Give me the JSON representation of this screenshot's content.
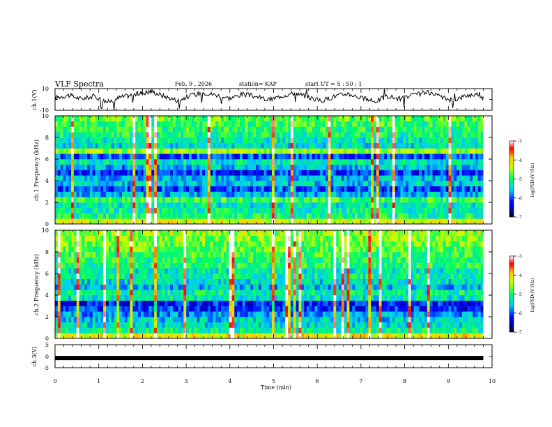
{
  "header": {
    "title": "VLF Spectra",
    "date": "Feb. 9 , 2026",
    "station": "station= KAP",
    "start": "start  UT  =   5  : 50 : 1"
  },
  "chart_data": [
    {
      "type": "line",
      "name": "ch1-voltage",
      "ylabel": "ch.1(V)",
      "ylim": [
        -10,
        10
      ],
      "yticks": [
        "10",
        "-10"
      ],
      "x_minutes": [
        0.0,
        0.3,
        0.6,
        0.9,
        1.2,
        1.5,
        1.8,
        2.0,
        2.2,
        2.5,
        2.8,
        3.1,
        3.4,
        3.7,
        4.0,
        4.3,
        4.6,
        4.9,
        5.2,
        5.5,
        5.8,
        6.1,
        6.4,
        6.7,
        7.0,
        7.3,
        7.6,
        7.9,
        8.2,
        8.5,
        8.8,
        9.1,
        9.4,
        9.7,
        9.8
      ],
      "values": [
        1.5,
        4.0,
        0.5,
        3.0,
        -2.5,
        2.0,
        4.5,
        6.0,
        7.5,
        3.0,
        -1.0,
        3.5,
        6.5,
        4.0,
        1.0,
        5.0,
        2.5,
        -0.5,
        3.5,
        6.0,
        2.0,
        -1.5,
        3.0,
        5.5,
        1.5,
        -2.0,
        3.0,
        0.5,
        4.0,
        6.5,
        2.5,
        -1.0,
        3.5,
        5.0,
        1.0
      ]
    },
    {
      "type": "heatmap",
      "name": "ch1-spectrogram",
      "ylabel": "ch.1 Frequency  (kHz)",
      "ylim": [
        0,
        10
      ],
      "yticks": [
        "0",
        "2",
        "4",
        "6",
        "8",
        "10"
      ],
      "band_khz": [
        0.25,
        0.75,
        1.25,
        1.75,
        2.25,
        2.75,
        3.25,
        3.75,
        4.25,
        4.75,
        5.25,
        5.75,
        6.25,
        6.75,
        7.25,
        7.75,
        8.25,
        8.75,
        9.25,
        9.75
      ],
      "band_log_psd": [
        -4.3,
        -5.1,
        -5.2,
        -5.3,
        -4.9,
        -5.6,
        -6.0,
        -5.5,
        -5.6,
        -6.1,
        -5.6,
        -5.3,
        -6.0,
        -4.5,
        -5.4,
        -5.3,
        -5.1,
        -5.0,
        -4.9,
        -4.8
      ],
      "colorbar": {
        "label": "log(PSD)(V²/Hz)",
        "range": [
          -7,
          -3
        ],
        "ticks": [
          "-3",
          "-4",
          "-5",
          "-6",
          "-7"
        ]
      }
    },
    {
      "type": "heatmap",
      "name": "ch2-spectrogram",
      "ylabel": "ch.2 Frequency  (kHz)",
      "ylim": [
        0,
        10
      ],
      "yticks": [
        "0",
        "2",
        "4",
        "6",
        "8",
        "10"
      ],
      "band_khz": [
        0.25,
        0.75,
        1.25,
        1.75,
        2.25,
        2.75,
        3.25,
        3.75,
        4.25,
        4.75,
        5.25,
        5.75,
        6.25,
        6.75,
        7.25,
        7.75,
        8.25,
        8.75,
        9.25,
        9.75
      ],
      "band_log_psd": [
        -4.2,
        -5.2,
        -5.4,
        -5.5,
        -5.7,
        -6.1,
        -6.2,
        -5.3,
        -5.2,
        -5.6,
        -5.4,
        -5.2,
        -5.3,
        -5.0,
        -5.0,
        -4.9,
        -4.8,
        -4.7,
        -4.6,
        -4.5
      ],
      "colorbar": {
        "label": "log(PSD)(V²/Hz)",
        "range": [
          -7,
          -3
        ],
        "ticks": [
          "-3",
          "-4",
          "-5",
          "-6",
          "-7"
        ]
      }
    },
    {
      "type": "line",
      "name": "ch3-voltage",
      "ylabel": "ch.3(V)",
      "ylim": [
        -5,
        5
      ],
      "yticks": [
        "5",
        "0",
        "-5"
      ],
      "x_minutes": [
        0.0,
        9.8
      ],
      "values": [
        -0.8,
        -0.8
      ]
    }
  ],
  "x_axis": {
    "label": "Time  (min)",
    "range": [
      0,
      10
    ],
    "ticks": [
      "0",
      "1",
      "2",
      "3",
      "4",
      "5",
      "6",
      "7",
      "8",
      "9",
      "10"
    ],
    "data_end_min": 9.8
  }
}
